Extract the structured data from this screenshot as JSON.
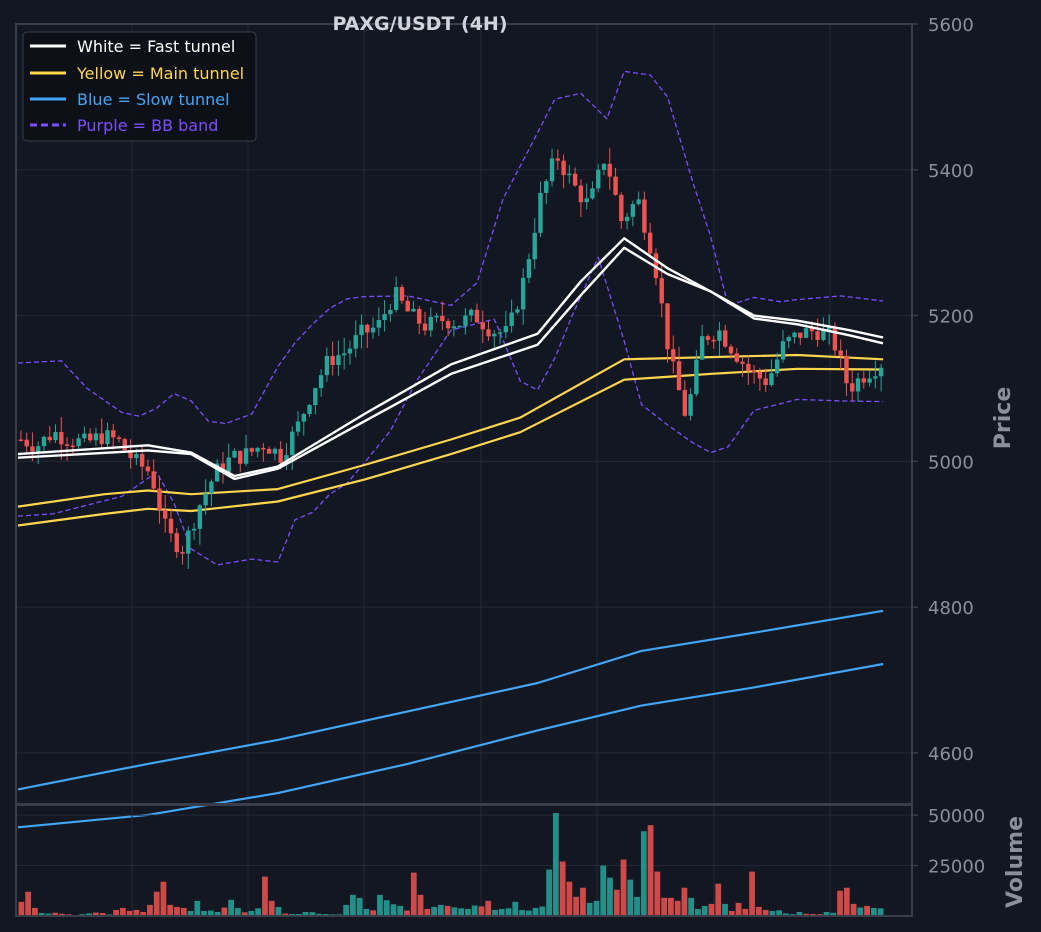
{
  "chart_data": [
    {
      "type": "candlestick",
      "title": "PAXG/USDT (4H)",
      "ylabel": "Price",
      "ylim": [
        4530,
        5600
      ],
      "yticks": [
        "4600",
        "4800",
        "5000",
        "5200",
        "5400",
        "5600"
      ],
      "grid": true,
      "legend_placement": "top-left",
      "colors": {
        "background": "#131722",
        "up": "#26a69a",
        "down": "#ef5350",
        "fast": "#ffffff",
        "main": "#ffd54f",
        "slow": "#42a5f5",
        "bb": "#7c4dff",
        "axis": "#3a3e4a",
        "grid": "#232837",
        "text": "#8a8f9c"
      },
      "legend": [
        {
          "label": "White = Fast tunnel",
          "color": "#ffffff",
          "style": "solid"
        },
        {
          "label": "Yellow = Main tunnel",
          "color": "#ffd54f",
          "style": "solid"
        },
        {
          "label": "Blue = Slow tunnel",
          "color": "#42a5f5",
          "style": "solid"
        },
        {
          "label": "Purple = BB band",
          "color": "#7c4dff",
          "style": "dashed"
        }
      ],
      "price_anchors": [
        5030,
        5022,
        5040,
        5030,
        5025,
        5035,
        5028,
        5000,
        4985,
        4900,
        4880,
        4940,
        4985,
        5005,
        5010,
        5025,
        5008,
        5045,
        5100,
        5140,
        5150,
        5175,
        5185,
        5230,
        5200,
        5185,
        5195,
        5190,
        5200,
        5180,
        5175,
        5250,
        5360,
        5420,
        5380,
        5350,
        5420,
        5330,
        5360,
        5280,
        5140,
        5060,
        5170,
        5180,
        5150,
        5120,
        5110,
        5160,
        5175,
        5180,
        5170,
        5100,
        5120,
        5135
      ],
      "series": [
        {
          "name": "Fast upper",
          "color": "#ffffff",
          "x": [
            0,
            0.15,
            0.2,
            0.25,
            0.3,
            0.4,
            0.5,
            0.6,
            0.65,
            0.7,
            0.75,
            0.8,
            0.85,
            0.9,
            0.96,
            0.999
          ],
          "values": [
            5010,
            5022,
            5012,
            4980,
            4993,
            5065,
            5133,
            5175,
            5247,
            5306,
            5265,
            5233,
            5200,
            5193,
            5180,
            5170
          ]
        },
        {
          "name": "Fast lower",
          "color": "#ffffff",
          "x": [
            0,
            0.15,
            0.2,
            0.25,
            0.3,
            0.4,
            0.5,
            0.6,
            0.65,
            0.7,
            0.75,
            0.8,
            0.85,
            0.9,
            0.96,
            0.999
          ],
          "values": [
            5005,
            5015,
            5010,
            4976,
            4990,
            5055,
            5120,
            5160,
            5228,
            5293,
            5257,
            5233,
            5196,
            5188,
            5173,
            5162
          ]
        },
        {
          "name": "Main upper",
          "color": "#ffd54f",
          "x": [
            0,
            0.1,
            0.15,
            0.2,
            0.3,
            0.4,
            0.5,
            0.58,
            0.7,
            0.8,
            0.9,
            0.999
          ],
          "values": [
            4938,
            4955,
            4960,
            4955,
            4962,
            4995,
            5030,
            5060,
            5140,
            5143,
            5146,
            5140
          ]
        },
        {
          "name": "Main lower",
          "color": "#ffd54f",
          "x": [
            0,
            0.1,
            0.15,
            0.2,
            0.3,
            0.4,
            0.5,
            0.58,
            0.7,
            0.8,
            0.9,
            0.999
          ],
          "values": [
            4912,
            4928,
            4935,
            4932,
            4945,
            4975,
            5010,
            5040,
            5112,
            5120,
            5127,
            5126
          ]
        },
        {
          "name": "Slow upper",
          "color": "#42a5f5",
          "x": [
            0,
            0.15,
            0.3,
            0.45,
            0.6,
            0.72,
            0.85,
            0.999
          ],
          "values": [
            4550,
            4585,
            4618,
            4657,
            4696,
            4740,
            4765,
            4795
          ]
        },
        {
          "name": "Slow lower",
          "color": "#42a5f5",
          "x": [
            0,
            0.15,
            0.3,
            0.45,
            0.6,
            0.72,
            0.85,
            0.999
          ],
          "values": [
            4498,
            4515,
            4545,
            4585,
            4631,
            4665,
            4690,
            4722
          ]
        },
        {
          "name": "BB upper",
          "color": "#7c4dff",
          "style": "dashed",
          "x": [
            0,
            0.05,
            0.08,
            0.12,
            0.14,
            0.16,
            0.18,
            0.2,
            0.22,
            0.24,
            0.27,
            0.3,
            0.32,
            0.34,
            0.36,
            0.38,
            0.4,
            0.45,
            0.5,
            0.53,
            0.56,
            0.59,
            0.62,
            0.65,
            0.68,
            0.7,
            0.73,
            0.75,
            0.78,
            0.8,
            0.82,
            0.85,
            0.88,
            0.9,
            0.95,
            0.999
          ],
          "values": [
            5135,
            5138,
            5100,
            5067,
            5062,
            5073,
            5093,
            5083,
            5055,
            5052,
            5065,
            5130,
            5163,
            5188,
            5210,
            5223,
            5226,
            5227,
            5214,
            5245,
            5360,
            5428,
            5497,
            5505,
            5470,
            5535,
            5530,
            5500,
            5380,
            5308,
            5214,
            5225,
            5219,
            5222,
            5227,
            5220
          ]
        },
        {
          "name": "BB lower",
          "color": "#7c4dff",
          "style": "dashed",
          "x": [
            0,
            0.04,
            0.08,
            0.12,
            0.16,
            0.18,
            0.2,
            0.23,
            0.27,
            0.3,
            0.32,
            0.34,
            0.36,
            0.38,
            0.4,
            0.43,
            0.46,
            0.5,
            0.55,
            0.58,
            0.6,
            0.62,
            0.64,
            0.67,
            0.7,
            0.72,
            0.75,
            0.78,
            0.8,
            0.82,
            0.85,
            0.9,
            0.95,
            0.999
          ],
          "values": [
            4925,
            4928,
            4940,
            4952,
            4985,
            4943,
            4880,
            4858,
            4866,
            4862,
            4920,
            4930,
            4955,
            4970,
            4998,
            5042,
            5110,
            5180,
            5195,
            5110,
            5098,
            5142,
            5200,
            5280,
            5165,
            5078,
            5050,
            5025,
            5012,
            5020,
            5070,
            5085,
            5083,
            5082
          ]
        }
      ]
    },
    {
      "type": "bar",
      "ylabel": "Volume",
      "ylim": [
        0,
        55000
      ],
      "yticks": [
        "25000",
        "50000"
      ],
      "bars": [
        7000,
        12000,
        4000,
        1500,
        1200,
        1600,
        1100,
        800,
        300,
        900,
        1300,
        1700,
        1500,
        800,
        3000,
        4000,
        2500,
        3000,
        2000,
        5500,
        12000,
        17000,
        5500,
        4500,
        4000,
        2500,
        7500,
        2500,
        2700,
        2000,
        4200,
        8000,
        4000,
        1800,
        2500,
        3800,
        19500,
        7500,
        4500,
        1200,
        1000,
        1000,
        2000,
        1900,
        1100,
        1000,
        800,
        800,
        5500,
        10500,
        9000,
        3500,
        2800,
        10500,
        7800,
        5800,
        5000,
        2700,
        21500,
        10500,
        3500,
        4500,
        5500,
        5000,
        4300,
        3800,
        3500,
        5200,
        4800,
        7500,
        3000,
        3500,
        3800,
        7000,
        3000,
        2700,
        4000,
        4700,
        23000,
        51000,
        27000,
        17000,
        9500,
        14000,
        6500,
        7500,
        25000,
        19000,
        13000,
        28000,
        18000,
        9500,
        42000,
        45000,
        22000,
        9000,
        9000,
        7500,
        14000,
        9000,
        3500,
        5000,
        6000,
        16000,
        6000,
        2500,
        6500,
        3500,
        22000,
        4500,
        3000,
        2500,
        2800,
        1300,
        900,
        2000,
        1100,
        1000,
        900,
        2000,
        1600,
        12500,
        14000,
        6000,
        4200,
        5000,
        4000,
        3800
      ],
      "colors": [
        "up",
        "down"
      ]
    }
  ]
}
